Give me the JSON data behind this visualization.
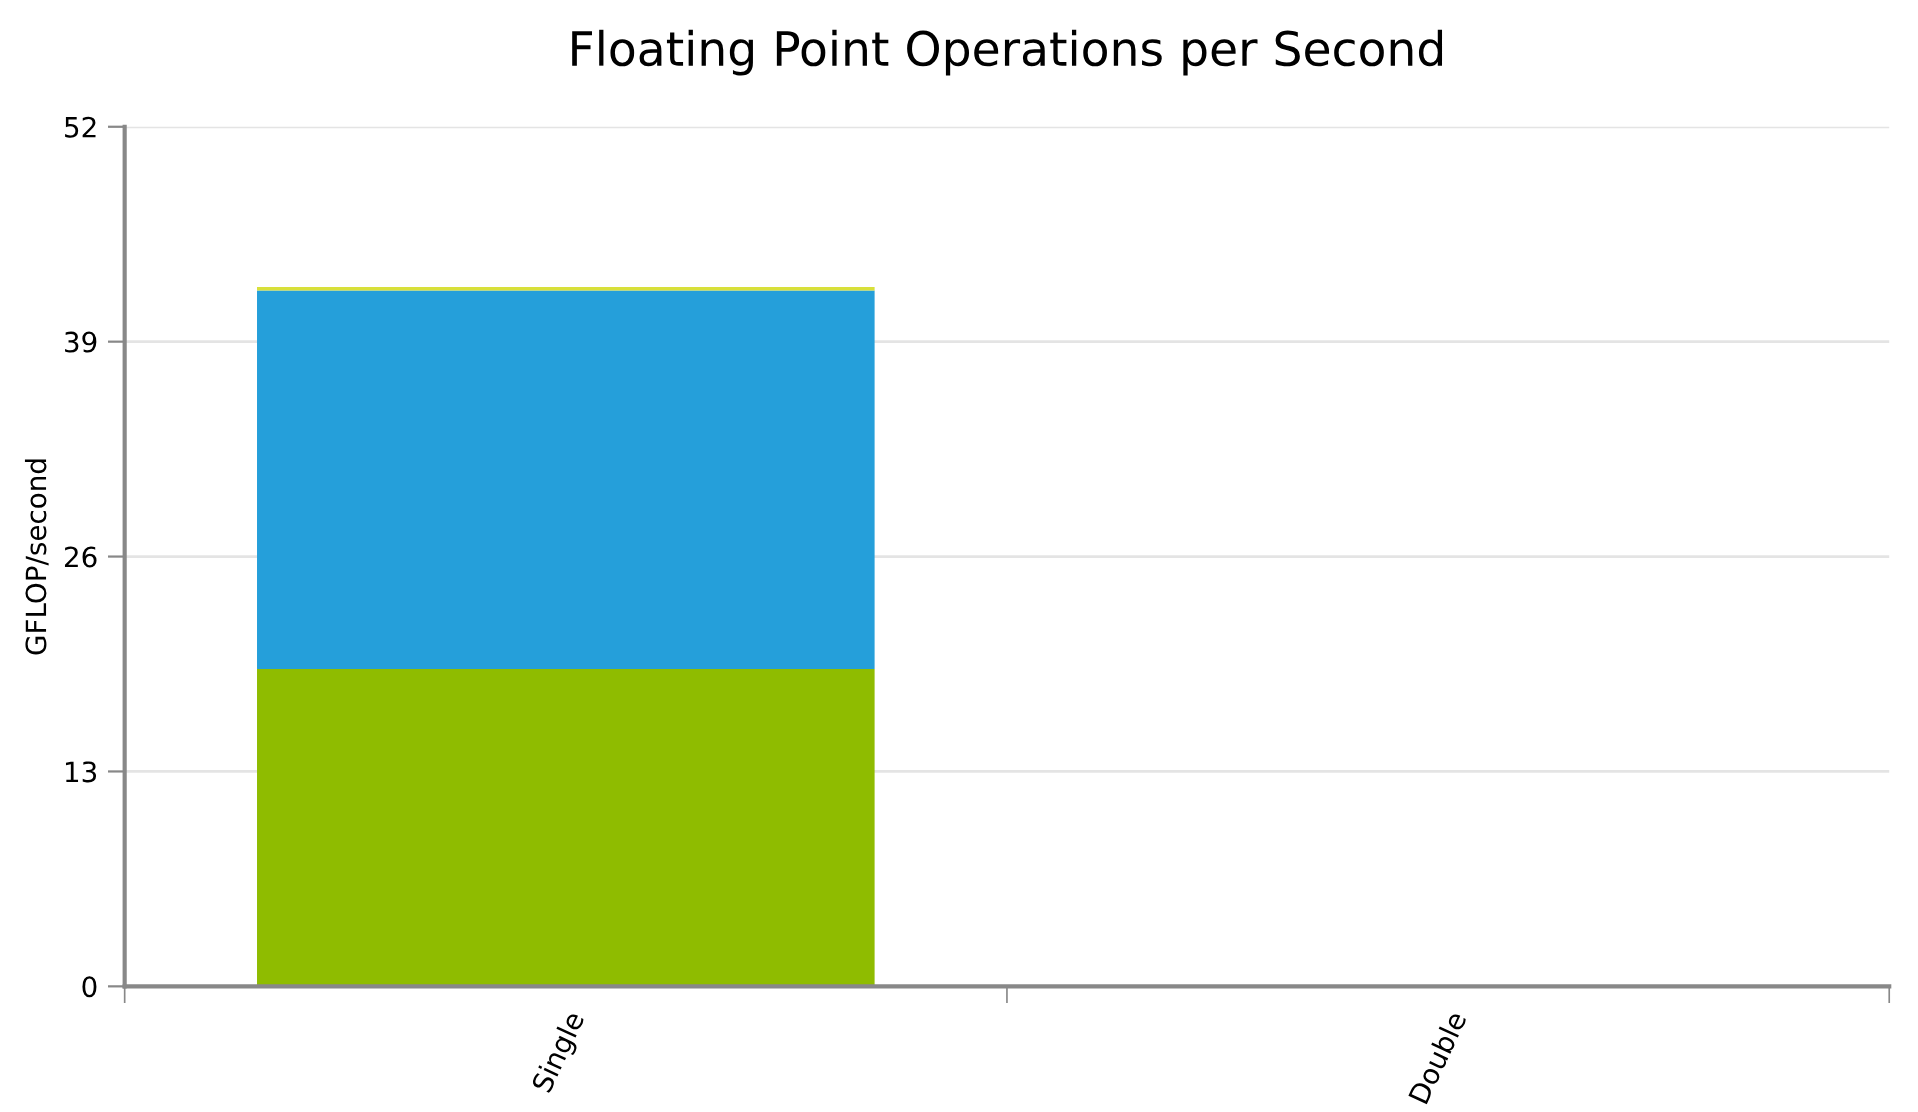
{
  "chart_data": {
    "type": "bar",
    "title": "Floating Point Operations per Second",
    "ylabel": "GFLOP/second",
    "categories": [
      "Single",
      "Double"
    ],
    "stacked": true,
    "series": [
      {
        "color": "#8fbc00",
        "values": [
          19.2,
          0
        ]
      },
      {
        "color": "#259fda",
        "values": [
          22.9,
          0
        ]
      },
      {
        "color": "#d8e03a",
        "values": [
          0.2,
          0
        ]
      }
    ],
    "ylim": [
      0,
      52
    ],
    "yticks": [
      0,
      13,
      26,
      39,
      52
    ],
    "grid": "y"
  }
}
